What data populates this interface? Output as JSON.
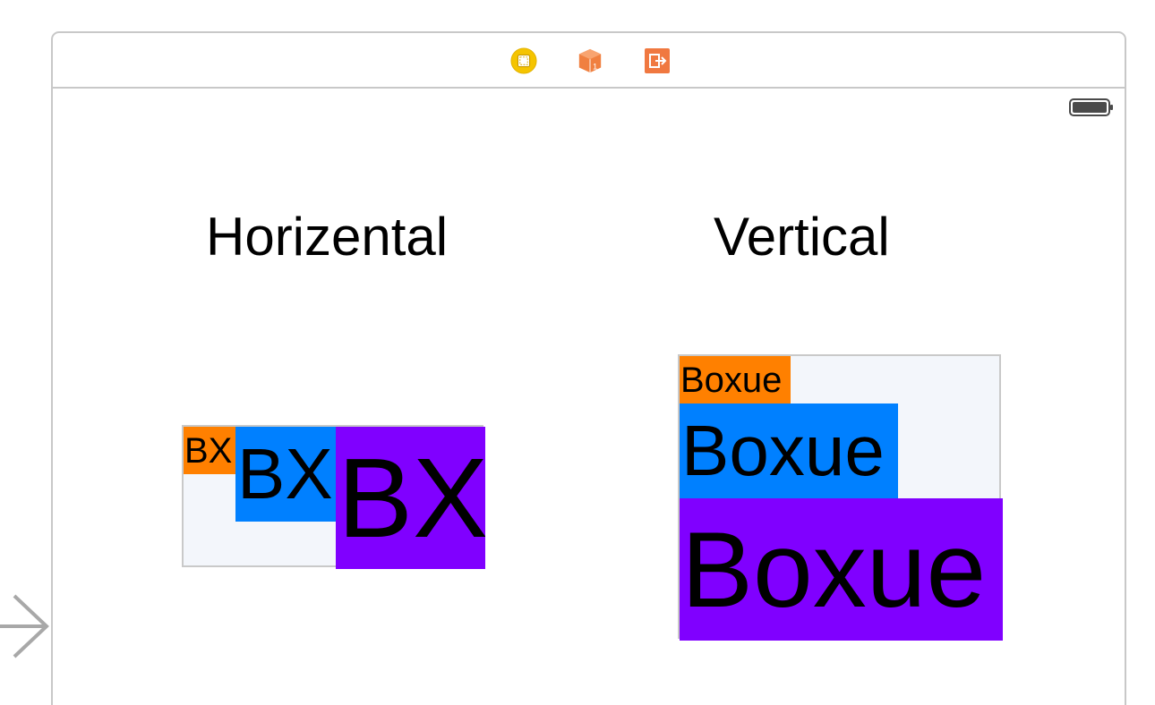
{
  "dock": {
    "icons": [
      "view-controller-icon",
      "first-responder-icon",
      "exit-icon"
    ]
  },
  "status_bar": {
    "battery": "battery-icon"
  },
  "horizontal": {
    "title": "Horizental",
    "labels": [
      "BX",
      "BX",
      "BX"
    ]
  },
  "vertical": {
    "title": "Vertical",
    "labels": [
      "Boxue",
      "Boxue",
      "Boxue"
    ]
  },
  "colors": {
    "orange": "#ff8000",
    "blue": "#0080ff",
    "purple": "#8000ff",
    "stack_bg": "#f3f6fb",
    "frame": "#c8c8c8",
    "dock_yellow": "#f5c400",
    "dock_orange": "#f08040",
    "arrow": "#a8a8a8"
  }
}
